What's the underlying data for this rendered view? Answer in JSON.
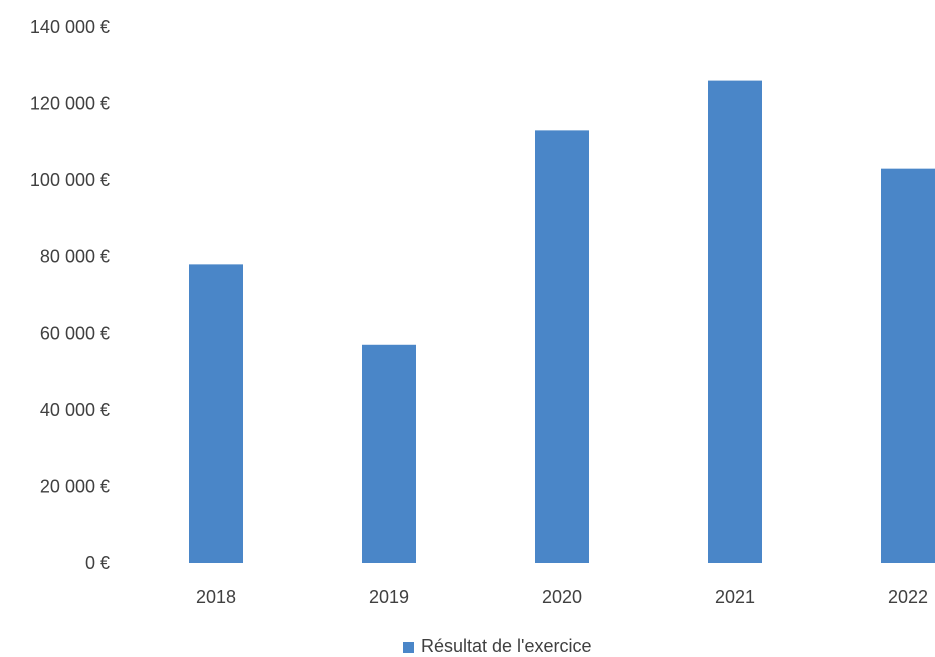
{
  "chart_data": {
    "type": "bar",
    "title": "",
    "xlabel": "",
    "ylabel": "",
    "categories": [
      "2018",
      "2019",
      "2020",
      "2021",
      "2022"
    ],
    "series": [
      {
        "name": "Résultat de l'exercice",
        "values": [
          78000,
          57000,
          113000,
          126000,
          103000
        ],
        "color": "#4a86c8"
      }
    ],
    "ylim": [
      0,
      140000
    ],
    "yticks": [
      {
        "value": 0,
        "label": "0 €"
      },
      {
        "value": 20000,
        "label": "20 000 €"
      },
      {
        "value": 40000,
        "label": "40 000 €"
      },
      {
        "value": 60000,
        "label": "60 000 €"
      },
      {
        "value": 80000,
        "label": "80 000 €"
      },
      {
        "value": 100000,
        "label": "100 000 €"
      },
      {
        "value": 120000,
        "label": "120 000 €"
      },
      {
        "value": 140000,
        "label": "140 000 €"
      }
    ],
    "grid": false,
    "legend": {
      "position": "bottom",
      "label": "Résultat de l'exercice"
    }
  }
}
